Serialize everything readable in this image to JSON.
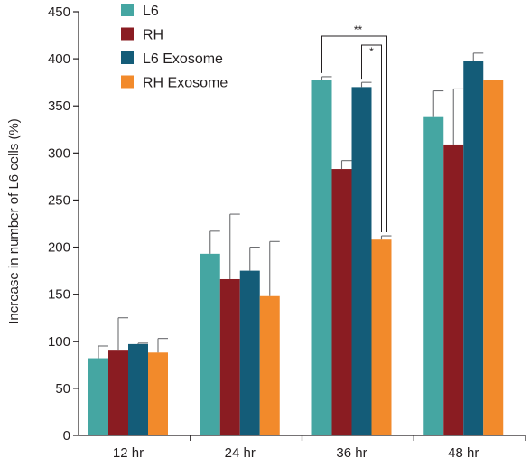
{
  "chart_data": {
    "type": "bar",
    "categories": [
      "12 hr",
      "24 hr",
      "36 hr",
      "48 hr"
    ],
    "ylabel": "Increase in number of L6 cells (%)",
    "ylim": [
      0,
      450
    ],
    "yticks": [
      0,
      50,
      100,
      150,
      200,
      250,
      300,
      350,
      400,
      450
    ],
    "grid": false,
    "legend_position": "top-left",
    "series": [
      {
        "name": "L6",
        "color": "#45a6a2",
        "values": [
          82,
          193,
          378,
          339
        ],
        "errors": [
          13,
          24,
          3,
          27
        ]
      },
      {
        "name": "RH",
        "color": "#8a1c22",
        "values": [
          91,
          166,
          283,
          309
        ],
        "errors": [
          34,
          69,
          9,
          59
        ]
      },
      {
        "name": "L6 Exosome",
        "color": "#145c78",
        "values": [
          97,
          175,
          370,
          398
        ],
        "errors": [
          1,
          25,
          5,
          8
        ]
      },
      {
        "name": "RH Exosome",
        "color": "#f28a2b",
        "values": [
          88,
          148,
          208,
          378
        ],
        "errors": [
          15,
          58,
          4,
          0
        ]
      }
    ],
    "annotations": [
      {
        "label": "**",
        "category": "36 hr",
        "from_series": "L6",
        "to_series": "RH Exosome"
      },
      {
        "label": "*",
        "category": "36 hr",
        "from_series": "L6 Exosome",
        "to_series": "RH Exosome"
      }
    ]
  }
}
